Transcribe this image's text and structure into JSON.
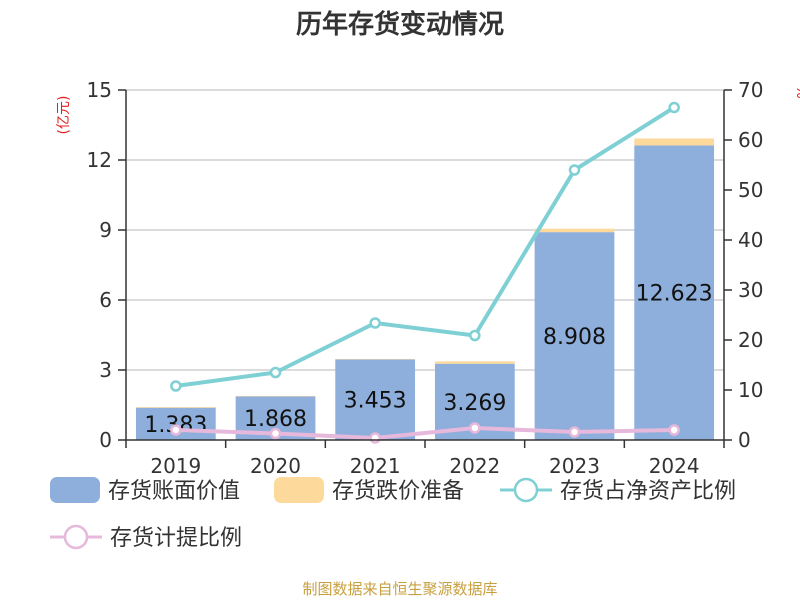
{
  "chart_data": {
    "type": "bar",
    "title": "历年存货变动情况",
    "categories": [
      "2019",
      "2020",
      "2021",
      "2022",
      "2023",
      "2024"
    ],
    "left_axis": {
      "unit_label": "(亿元)",
      "range": [
        0,
        15
      ],
      "ticks": [
        "0",
        "3",
        "6",
        "9",
        "12",
        "15"
      ]
    },
    "right_axis": {
      "unit_label": "%",
      "range": [
        0,
        70
      ],
      "ticks": [
        "0",
        "10",
        "20",
        "30",
        "40",
        "50",
        "60",
        "70"
      ]
    },
    "series": [
      {
        "name": "存货账面价值",
        "kind": "bar",
        "axis": "left",
        "color": "#8eaedb",
        "values": [
          1.383,
          1.868,
          3.453,
          3.269,
          8.908,
          12.623
        ],
        "labels": [
          "1.383",
          "1.868",
          "3.453",
          "3.269",
          "8.908",
          "12.623"
        ]
      },
      {
        "name": "存货跌价准备",
        "kind": "bar-stacked",
        "axis": "left",
        "color": "#fdd99b",
        "values": [
          0.03,
          0.02,
          0.02,
          0.1,
          0.15,
          0.3
        ]
      },
      {
        "name": "存货占净资产比例",
        "kind": "line",
        "axis": "right",
        "color": "#7fd0d4",
        "values": [
          10.8,
          13.5,
          23.4,
          20.9,
          54.0,
          66.5
        ]
      },
      {
        "name": "存货计提比例",
        "kind": "line",
        "axis": "right",
        "color": "#e6b8dc",
        "values": [
          2.0,
          1.3,
          0.4,
          2.4,
          1.6,
          2.0
        ]
      }
    ],
    "grid": true,
    "legend_position": "bottom"
  },
  "source_text": "制图数据来自恒生聚源数据库"
}
